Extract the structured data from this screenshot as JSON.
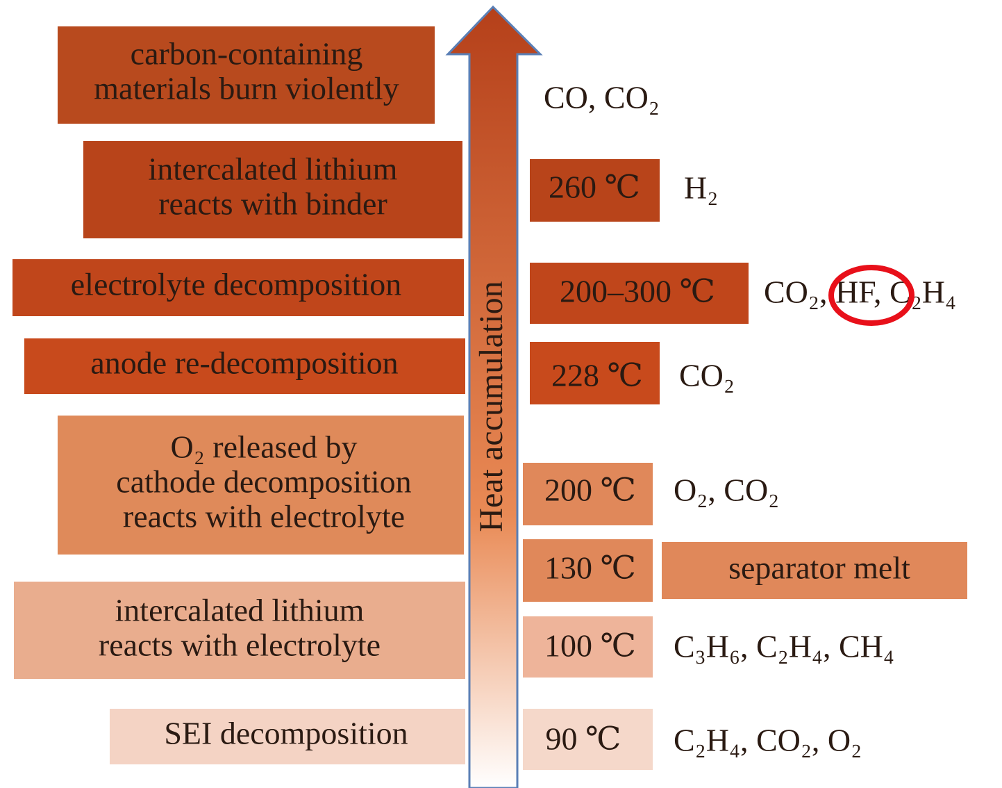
{
  "stages": [
    {
      "lines": [
        "carbon-containing",
        "materials burn violently"
      ]
    },
    {
      "lines": [
        "intercalated lithium",
        "reacts with binder"
      ]
    },
    {
      "lines": [
        "electrolyte decomposition"
      ]
    },
    {
      "lines": [
        "anode re-decomposition"
      ]
    },
    {
      "lines": [
        "O₂ released by",
        "cathode decomposition",
        "reacts with electrolyte"
      ]
    },
    {
      "lines": [
        "intercalated lithium",
        "reacts with electrolyte"
      ]
    },
    {
      "lines": [
        "SEI decomposition"
      ]
    }
  ],
  "arrow_label": "Heat accumulation",
  "temperatures": [
    "260 ℃",
    "200–300 ℃",
    "228 ℃",
    "200 ℃",
    "130 ℃",
    "100 ℃",
    "90 ℃"
  ],
  "gases": [
    "CO, CO₂",
    "H₂",
    "CO₂, HF, C₂H₄",
    "CO₂",
    "O₂, CO₂",
    "C₃H₆, C₂H₄, CH₄",
    "C₂H₄, CO₂, O₂"
  ],
  "separator": "separator melt"
}
